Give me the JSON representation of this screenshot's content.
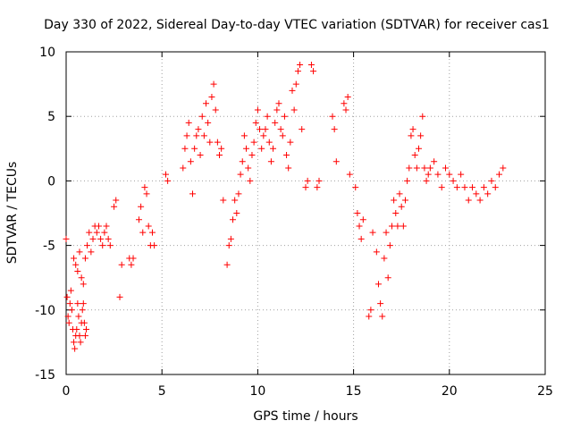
{
  "chart_data": {
    "type": "scatter",
    "title": "Day 330 of 2022, Sidereal Day-to-day VTEC variation (SDTVAR) for receiver cas1",
    "xlabel": "GPS time / hours",
    "ylabel": "SDTVAR / TECUs",
    "xlim": [
      0,
      25
    ],
    "ylim": [
      -15,
      10
    ],
    "xticks": [
      0,
      5,
      10,
      15,
      20,
      25
    ],
    "yticks": [
      -15,
      -10,
      -5,
      0,
      5,
      10
    ],
    "xtick_labels": [
      "0",
      "5",
      "10",
      "15",
      "20",
      "25"
    ],
    "ytick_labels": [
      "-15",
      "-10",
      "-5",
      "0",
      "5",
      "10"
    ],
    "grid": true,
    "marker": "+",
    "series": [
      {
        "name": "SDTVAR",
        "color": "#ff0000",
        "x": [
          0.0,
          0.05,
          0.1,
          0.15,
          0.2,
          0.25,
          0.3,
          0.35,
          0.4,
          0.45,
          0.5,
          0.55,
          0.6,
          0.65,
          0.7,
          0.75,
          0.8,
          0.85,
          0.9,
          0.95,
          1.0,
          1.05,
          0.4,
          0.5,
          0.6,
          0.7,
          0.8,
          0.9,
          1.0,
          1.1,
          1.2,
          1.3,
          1.4,
          1.5,
          1.6,
          1.7,
          1.8,
          1.9,
          2.0,
          2.1,
          2.2,
          2.3,
          2.5,
          2.6,
          2.8,
          2.9,
          3.3,
          3.4,
          3.5,
          3.8,
          3.9,
          4.0,
          4.1,
          4.2,
          4.3,
          4.4,
          4.5,
          4.6,
          5.2,
          5.3,
          6.1,
          6.2,
          6.3,
          6.4,
          6.5,
          6.6,
          6.7,
          6.8,
          6.9,
          7.0,
          7.1,
          7.2,
          7.3,
          7.4,
          7.5,
          7.6,
          7.7,
          7.8,
          7.9,
          8.0,
          8.1,
          8.2,
          8.4,
          8.5,
          8.6,
          8.7,
          8.8,
          8.9,
          9.0,
          9.1,
          9.2,
          9.3,
          9.4,
          9.5,
          9.6,
          9.7,
          9.8,
          9.9,
          10.0,
          10.1,
          10.2,
          10.3,
          10.4,
          10.5,
          10.6,
          10.7,
          10.8,
          10.9,
          11.0,
          11.1,
          11.2,
          11.3,
          11.4,
          11.5,
          11.6,
          11.7,
          11.8,
          11.9,
          12.0,
          12.1,
          12.2,
          12.3,
          12.5,
          12.6,
          12.8,
          12.9,
          13.1,
          13.2,
          13.9,
          14.0,
          14.1,
          14.5,
          14.6,
          14.7,
          14.8,
          15.1,
          15.2,
          15.3,
          15.4,
          15.5,
          15.8,
          15.9,
          16.0,
          16.2,
          16.3,
          16.4,
          16.5,
          16.6,
          16.7,
          16.8,
          16.9,
          17.0,
          17.1,
          17.2,
          17.3,
          17.4,
          17.5,
          17.6,
          17.7,
          17.8,
          17.9,
          18.0,
          18.1,
          18.2,
          18.3,
          18.4,
          18.5,
          18.6,
          18.7,
          18.8,
          18.9,
          19.0,
          19.2,
          19.4,
          19.6,
          19.8,
          20.0,
          20.2,
          20.4,
          20.6,
          20.8,
          21.0,
          21.2,
          21.4,
          21.6,
          21.8,
          22.0,
          22.2,
          22.4,
          22.6,
          22.8
        ],
        "y": [
          -4.5,
          -9.0,
          -10.5,
          -11.0,
          -9.5,
          -8.5,
          -10.0,
          -11.5,
          -12.5,
          -13.0,
          -12.0,
          -11.5,
          -9.5,
          -10.5,
          -12.0,
          -12.5,
          -11.0,
          -10.0,
          -9.5,
          -11.0,
          -12.0,
          -11.5,
          -6.0,
          -6.5,
          -7.0,
          -5.5,
          -7.5,
          -8.0,
          -6.0,
          -5.0,
          -4.0,
          -5.5,
          -4.5,
          -3.5,
          -4.0,
          -3.5,
          -4.5,
          -5.0,
          -4.0,
          -3.5,
          -4.5,
          -5.0,
          -2.0,
          -1.5,
          -9.0,
          -6.5,
          -6.0,
          -6.5,
          -6.0,
          -3.0,
          -2.0,
          -4.0,
          -0.5,
          -1.0,
          -3.5,
          -5.0,
          -4.0,
          -5.0,
          0.5,
          0.0,
          1.0,
          2.5,
          3.5,
          4.5,
          1.5,
          -1.0,
          2.5,
          3.5,
          4.0,
          2.0,
          5.0,
          3.5,
          6.0,
          4.5,
          3.0,
          6.5,
          7.5,
          5.5,
          3.0,
          2.0,
          2.5,
          -1.5,
          -6.5,
          -5.0,
          -4.5,
          -3.0,
          -1.5,
          -2.5,
          -1.0,
          0.5,
          1.5,
          3.5,
          2.5,
          1.0,
          0.0,
          2.0,
          3.0,
          4.5,
          5.5,
          4.0,
          2.5,
          3.5,
          4.0,
          5.0,
          3.0,
          1.5,
          2.5,
          4.5,
          5.5,
          6.0,
          4.0,
          3.5,
          5.0,
          2.0,
          1.0,
          3.0,
          7.0,
          5.5,
          7.5,
          8.5,
          9.0,
          4.0,
          -0.5,
          0.0,
          9.0,
          8.5,
          -0.5,
          0.0,
          5.0,
          4.0,
          1.5,
          6.0,
          5.5,
          6.5,
          0.5,
          -0.5,
          -2.5,
          -3.5,
          -4.5,
          -3.0,
          -10.5,
          -10.0,
          -4.0,
          -5.5,
          -8.0,
          -9.5,
          -10.5,
          -6.0,
          -4.0,
          -7.5,
          -5.0,
          -3.5,
          -1.5,
          -2.5,
          -3.5,
          -1.0,
          -2.0,
          -3.5,
          -1.5,
          0.0,
          1.0,
          3.5,
          4.0,
          2.0,
          1.0,
          2.5,
          3.5,
          5.0,
          1.0,
          0.0,
          0.5,
          1.0,
          1.5,
          0.5,
          -0.5,
          1.0,
          0.5,
          0.0,
          -0.5,
          0.5,
          -0.5,
          -1.5,
          -0.5,
          -1.0,
          -1.5,
          -0.5,
          -1.0,
          0.0,
          -0.5,
          0.5,
          1.0
        ]
      }
    ]
  }
}
